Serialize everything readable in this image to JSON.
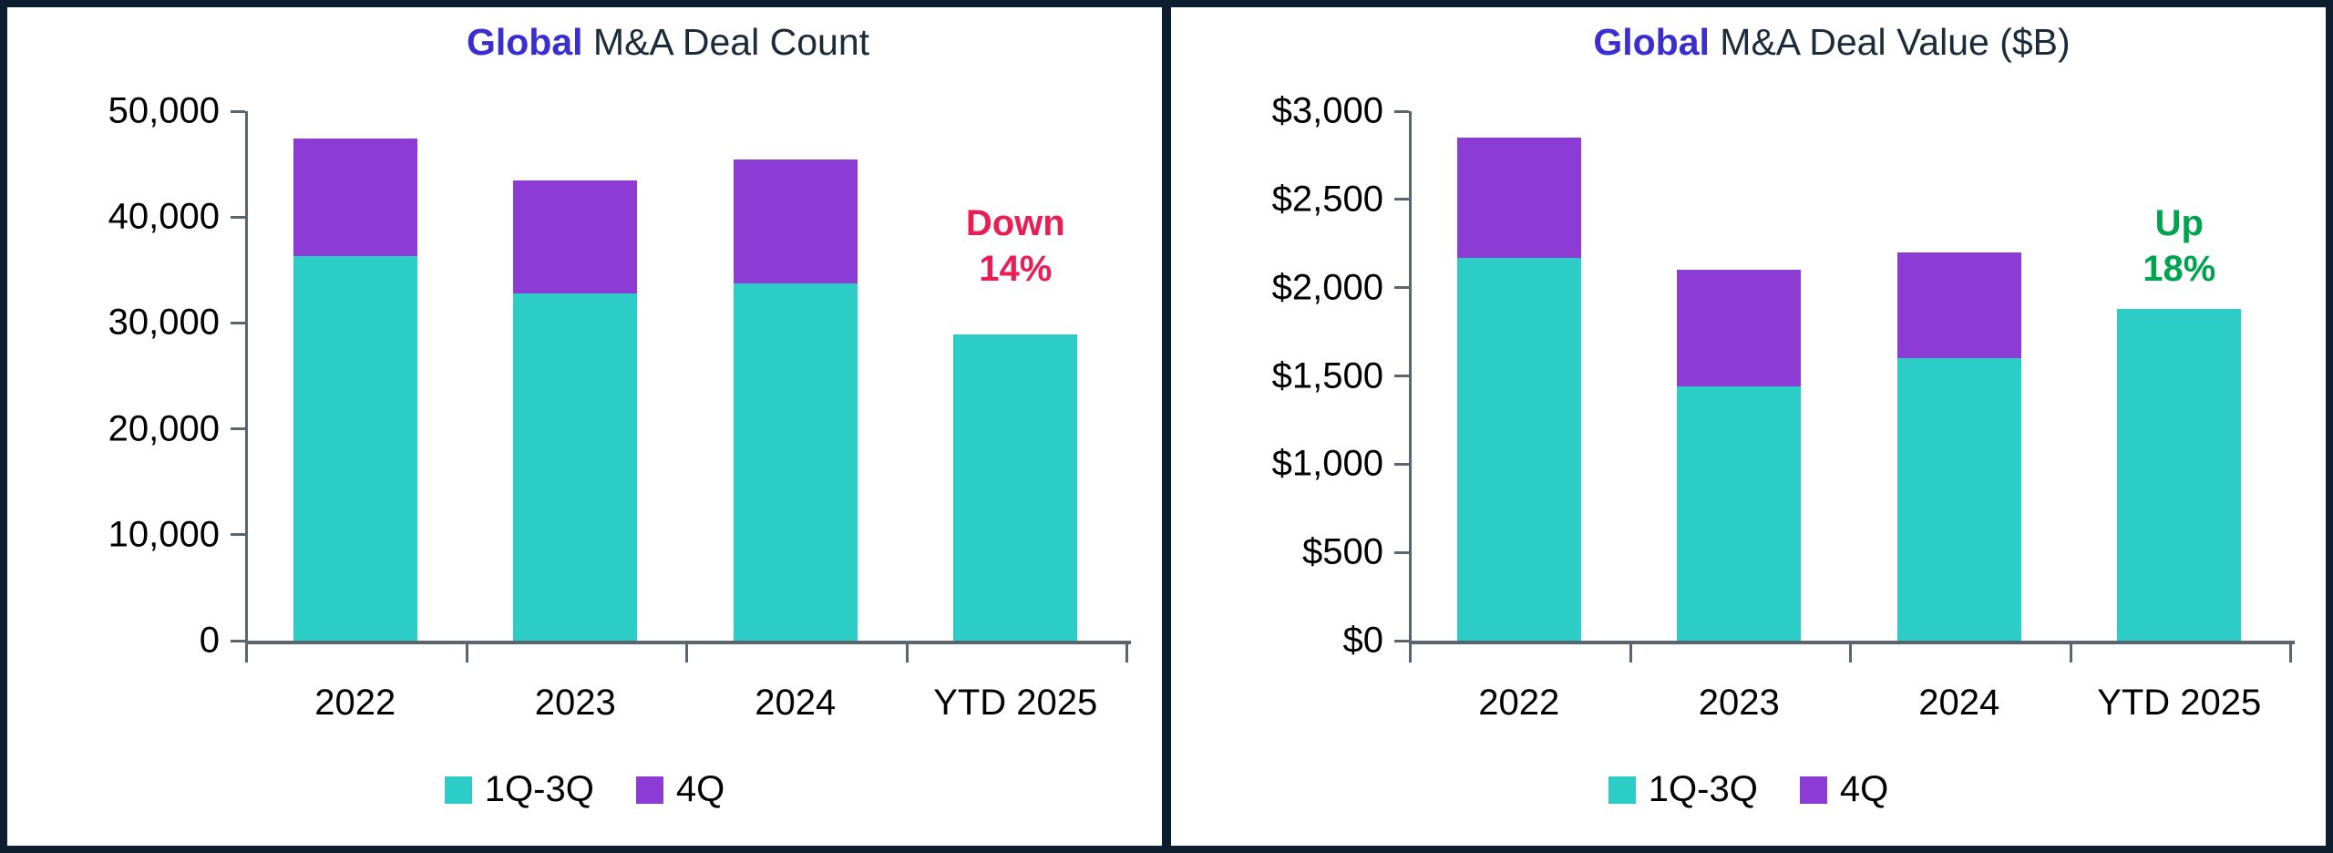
{
  "colors": {
    "teal": "#2BCDC6",
    "purple": "#8C3BD4",
    "title_brand_blue": "#3A2ED0",
    "title_dark_navy": "#1C2B3A",
    "panel_border_navy": "#0D1E30",
    "axis_gray": "#5A6570",
    "down_red": "#EA1E55",
    "up_green": "#00A44F"
  },
  "chart_data": [
    {
      "type": "bar",
      "stacked": true,
      "title": {
        "brand": "Global",
        "rest": " M&A Deal Count"
      },
      "categories": [
        "2022",
        "2023",
        "2024",
        "YTD 2025"
      ],
      "series": [
        {
          "name": "1Q-3Q",
          "color": "#2BCDC6",
          "values": [
            36300,
            32800,
            33700,
            28900
          ]
        },
        {
          "name": "4Q",
          "color": "#8C3BD4",
          "values": [
            11100,
            10700,
            11700,
            0
          ]
        }
      ],
      "totals": [
        47400,
        43500,
        45400,
        28900
      ],
      "ylim": [
        0,
        50000
      ],
      "y_ticks": [
        {
          "value": 0,
          "label": "0"
        },
        {
          "value": 10000,
          "label": "10,000"
        },
        {
          "value": 20000,
          "label": "20,000"
        },
        {
          "value": 30000,
          "label": "30,000"
        },
        {
          "value": 40000,
          "label": "40,000"
        },
        {
          "value": 50000,
          "label": "50,000"
        }
      ],
      "grid": false,
      "legend_position": "bottom",
      "annotation": {
        "line1": "Down",
        "line2": "14%",
        "color": "#EA1E55",
        "category_index": 3
      }
    },
    {
      "type": "bar",
      "stacked": true,
      "title": {
        "brand": "Global",
        "rest": " M&A Deal Value ($B)"
      },
      "categories": [
        "2022",
        "2023",
        "2024",
        "YTD 2025"
      ],
      "series": [
        {
          "name": "1Q-3Q",
          "color": "#2BCDC6",
          "values": [
            2170,
            1440,
            1600,
            1880
          ]
        },
        {
          "name": "4Q",
          "color": "#8C3BD4",
          "values": [
            680,
            660,
            600,
            0
          ]
        }
      ],
      "totals": [
        2850,
        2100,
        2200,
        1880
      ],
      "ylim": [
        0,
        3000
      ],
      "y_ticks": [
        {
          "value": 0,
          "label": "$0"
        },
        {
          "value": 500,
          "label": "$500"
        },
        {
          "value": 1000,
          "label": "$1,000"
        },
        {
          "value": 1500,
          "label": "$1,500"
        },
        {
          "value": 2000,
          "label": "$2,000"
        },
        {
          "value": 2500,
          "label": "$2,500"
        },
        {
          "value": 3000,
          "label": "$3,000"
        }
      ],
      "grid": false,
      "legend_position": "bottom",
      "annotation": {
        "line1": "Up",
        "line2": "18%",
        "color": "#00A44F",
        "category_index": 3
      }
    }
  ]
}
